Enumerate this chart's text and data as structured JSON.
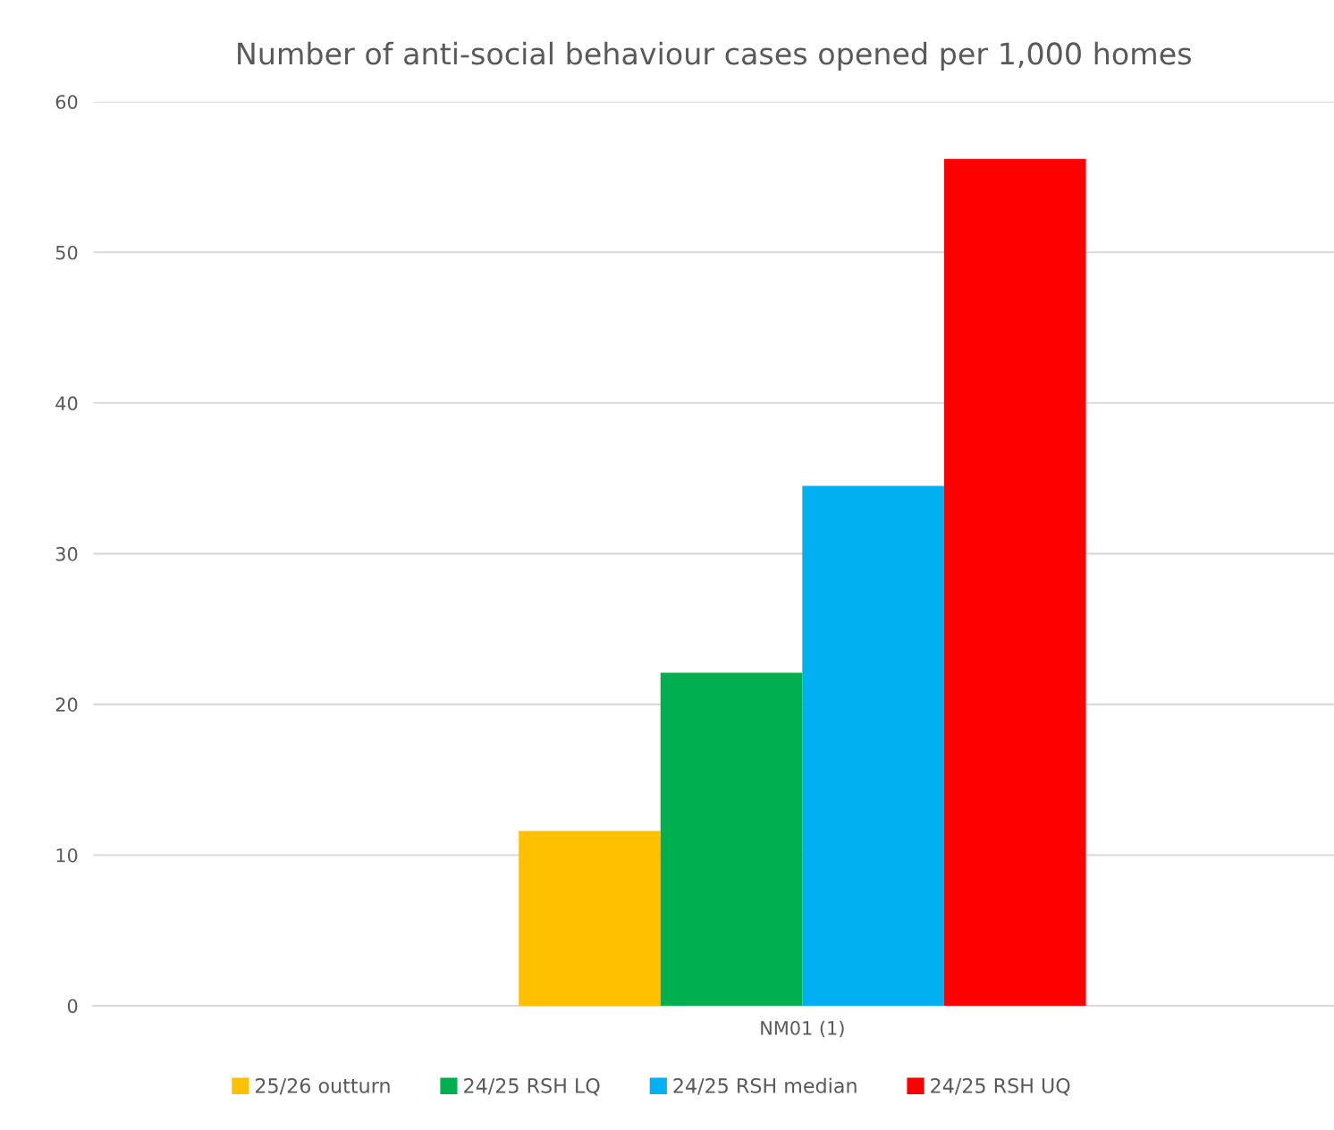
{
  "chart_data": {
    "type": "bar",
    "title": "Number of anti-social behaviour cases opened per 1,000 homes",
    "categories": [
      "NM01 (1)"
    ],
    "series": [
      {
        "name": "25/26 outturn",
        "color": "#ffc000",
        "values": [
          11.6
        ]
      },
      {
        "name": "24/25 RSH LQ",
        "color": "#00b050",
        "values": [
          22.1
        ]
      },
      {
        "name": "24/25 RSH median",
        "color": "#00b0f0",
        "values": [
          34.5
        ]
      },
      {
        "name": "24/25 RSH UQ",
        "color": "#ff0000",
        "values": [
          56.2
        ]
      }
    ],
    "ylim": [
      0,
      60
    ],
    "yticks": [
      0,
      10,
      20,
      30,
      40,
      50,
      60
    ],
    "grid": "y",
    "legend": "bottom"
  }
}
